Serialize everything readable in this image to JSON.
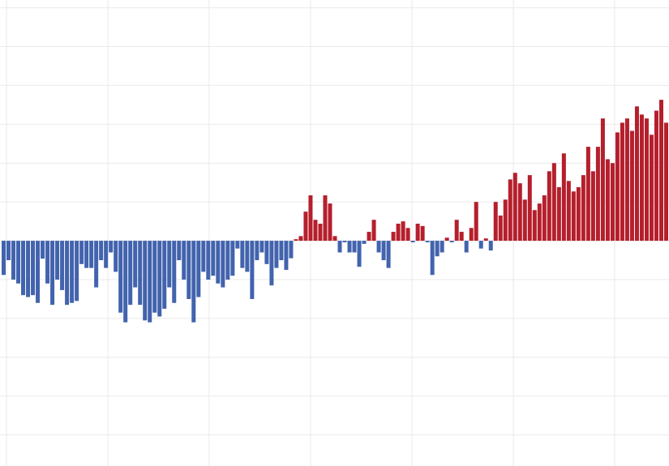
{
  "chart_data": {
    "type": "bar",
    "values": [
      -0.88,
      -0.5,
      -1.0,
      -1.1,
      -1.4,
      -1.45,
      -1.4,
      -1.6,
      -0.46,
      -1.1,
      -1.65,
      -1.0,
      -1.27,
      -1.65,
      -1.6,
      -1.55,
      -0.6,
      -0.7,
      -0.7,
      -1.2,
      -0.5,
      -0.7,
      -0.3,
      -0.8,
      -1.85,
      -2.1,
      -1.65,
      -1.2,
      -1.65,
      -2.05,
      -2.1,
      -1.85,
      -1.95,
      -1.75,
      -1.2,
      -1.6,
      -0.5,
      -1.0,
      -1.5,
      -2.1,
      -1.45,
      -0.8,
      -1.0,
      -0.9,
      -1.1,
      -1.2,
      -1.0,
      -0.9,
      -0.2,
      -0.7,
      -0.8,
      -1.5,
      -0.5,
      -0.3,
      -0.6,
      -1.15,
      -0.7,
      -0.5,
      -0.75,
      -0.45,
      0.04,
      0.12,
      0.75,
      1.17,
      0.54,
      0.44,
      1.17,
      0.96,
      0.12,
      -0.3,
      -0.04,
      -0.3,
      -0.3,
      -0.67,
      -0.08,
      0.23,
      0.54,
      -0.3,
      -0.5,
      -0.7,
      0.23,
      0.44,
      0.5,
      0.33,
      -0.04,
      0.44,
      0.38,
      -0.04,
      -0.88,
      -0.4,
      -0.3,
      0.08,
      -0.04,
      0.54,
      0.23,
      -0.3,
      0.33,
      1.0,
      -0.2,
      0.06,
      -0.25,
      1.0,
      0.65,
      1.06,
      1.58,
      1.75,
      1.48,
      1.06,
      1.69,
      0.79,
      0.96,
      1.17,
      1.79,
      2.0,
      1.38,
      2.25,
      1.54,
      1.27,
      1.38,
      1.69,
      2.42,
      1.79,
      2.42,
      3.15,
      2.1,
      2.0,
      2.79,
      3.04,
      3.15,
      2.83,
      3.46,
      3.25,
      3.15,
      2.73,
      3.35,
      3.63,
      3.04
    ],
    "positive_color": "#b51f2c",
    "negative_color": "#4263ad",
    "ylim": [
      -5.8,
      6.2
    ],
    "yticks": [
      -5,
      -4,
      -3,
      -2,
      -1,
      0,
      1,
      2,
      3,
      4,
      5,
      6
    ],
    "grid": true
  }
}
